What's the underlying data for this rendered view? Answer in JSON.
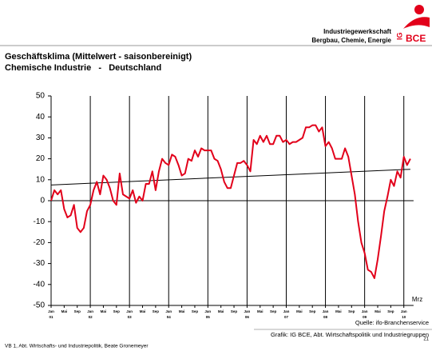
{
  "header": {
    "org_line1": "Industriegewerkschaft",
    "org_line2": "Bergbau, Chemie, Energie",
    "logo_left": "IG",
    "logo_right": "BCE"
  },
  "chart_data": {
    "type": "line",
    "title": "Geschäftsklima (Mittelwert - saisonbereinigt)",
    "subtitle": "Chemische Industrie   -   Deutschland",
    "categories": [
      "Jan",
      null,
      null,
      null,
      "Mai",
      null,
      null,
      null,
      "Sep",
      null,
      null,
      null,
      "Jan",
      null,
      null,
      null,
      "Mai",
      null,
      null,
      null,
      "Sep",
      null,
      null,
      null,
      "Jan",
      null,
      null,
      null,
      "Mai",
      null,
      null,
      null,
      "Sep",
      null,
      null,
      null,
      "Jan",
      null,
      null,
      null,
      "Mai",
      null,
      null,
      null,
      "Sep",
      null,
      null,
      null,
      "Jan",
      null,
      null,
      null,
      "Mai",
      null,
      null,
      null,
      "Sep",
      null,
      null,
      null,
      "Jan",
      null,
      null,
      null,
      "Mai",
      null,
      null,
      null,
      "Sep",
      null,
      null,
      null,
      "Jan",
      null,
      null,
      null,
      "Mai",
      null,
      null,
      null,
      "Sep",
      null,
      null,
      null,
      "Jan",
      null,
      null,
      null,
      "Mai",
      null,
      null,
      null,
      "Sep",
      null,
      null,
      null,
      "Jan",
      null,
      null,
      null,
      "Mai",
      null,
      null,
      null,
      "Sep",
      null,
      null,
      null,
      "Jan",
      null,
      null
    ],
    "years": [
      "01",
      "02",
      "03",
      "04",
      "05",
      "06",
      "07",
      "08",
      "09",
      "10"
    ],
    "end_label": "Mrz",
    "series": [
      {
        "name": "Geschäftsklima",
        "color": "#e2001a",
        "values": [
          0,
          5,
          3,
          5,
          -4,
          -8,
          -7,
          -2,
          -13,
          -15,
          -13,
          -5,
          -2,
          5,
          9,
          3,
          12,
          10,
          6,
          0,
          -2,
          13,
          3,
          2,
          1,
          5,
          -1,
          2,
          0,
          8,
          8,
          14,
          5,
          14,
          20,
          18,
          17,
          22,
          21,
          17,
          12,
          13,
          20,
          19,
          24,
          21,
          25,
          24,
          24,
          24,
          20,
          19,
          15,
          9,
          6,
          6,
          12,
          18,
          18,
          19,
          17,
          14,
          29,
          27,
          31,
          28,
          31,
          27,
          27,
          31,
          31,
          28,
          29,
          27,
          28,
          28,
          29,
          30,
          35,
          35,
          36,
          36,
          33,
          35,
          26,
          28,
          25,
          20,
          20,
          20,
          25,
          21,
          12,
          3,
          -10,
          -20,
          -25,
          -33,
          -34,
          -37,
          -28,
          -17,
          -5,
          2,
          10,
          7,
          14,
          11,
          21,
          17,
          20
        ]
      }
    ],
    "trend_line": [
      7.5,
      15
    ],
    "ylim": [
      -50,
      50
    ],
    "yticks": [
      -50,
      -40,
      -30,
      -20,
      -10,
      0,
      10,
      20,
      30,
      40,
      50
    ]
  },
  "footer": {
    "source": "Quelle: ifo-Branchenservice",
    "credit": "Grafik: IG BCE, Abt. Wirtschaftspolitik und Industriegruppen",
    "left": "VB 1,  Abt. Wirtschafts- und Industriepolitik, Beate Gronemeyer",
    "page": "21"
  }
}
